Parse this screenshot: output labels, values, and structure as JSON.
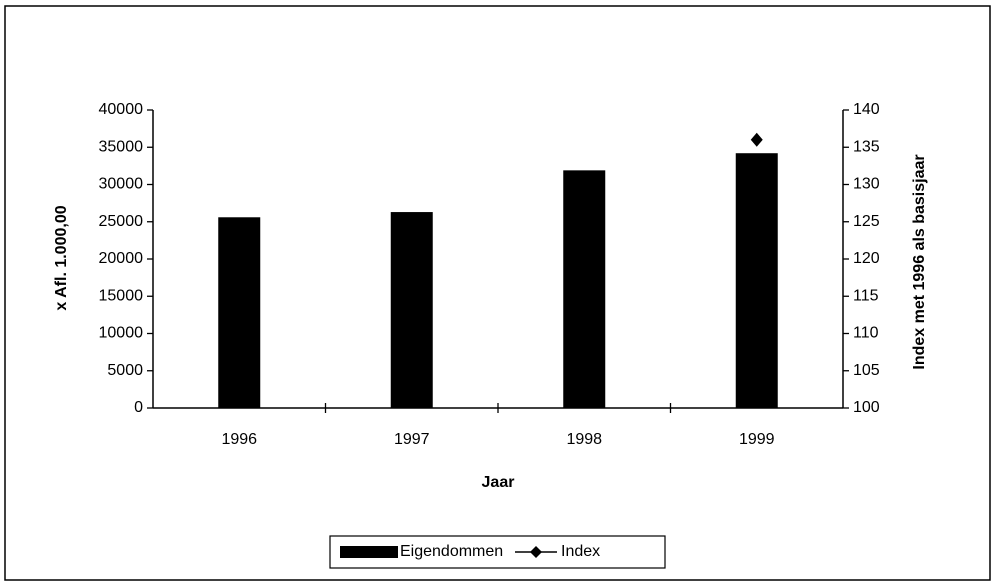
{
  "chart_data": {
    "type": "bar-line",
    "categories": [
      "1996",
      "1997",
      "1998",
      "1999"
    ],
    "series": [
      {
        "name": "Eigendommen",
        "type": "bar",
        "color": "#000000",
        "values": [
          25600,
          26300,
          31900,
          34200
        ]
      },
      {
        "name": "Index",
        "type": "line",
        "axis": "y2",
        "color": "#000000",
        "values": [
          null,
          null,
          null,
          136
        ]
      }
    ],
    "xlabel": "Jaar",
    "ylabel": "x Afl. 1.000,00",
    "y2label": "Index met 1996 als basisjaar",
    "ylim": [
      0,
      40000
    ],
    "yticks": [
      0,
      5000,
      10000,
      15000,
      20000,
      25000,
      30000,
      35000,
      40000
    ],
    "y2lim": [
      100,
      140
    ],
    "y2ticks": [
      100,
      105,
      110,
      115,
      120,
      125,
      130,
      135,
      140
    ],
    "legend": "bottom"
  }
}
